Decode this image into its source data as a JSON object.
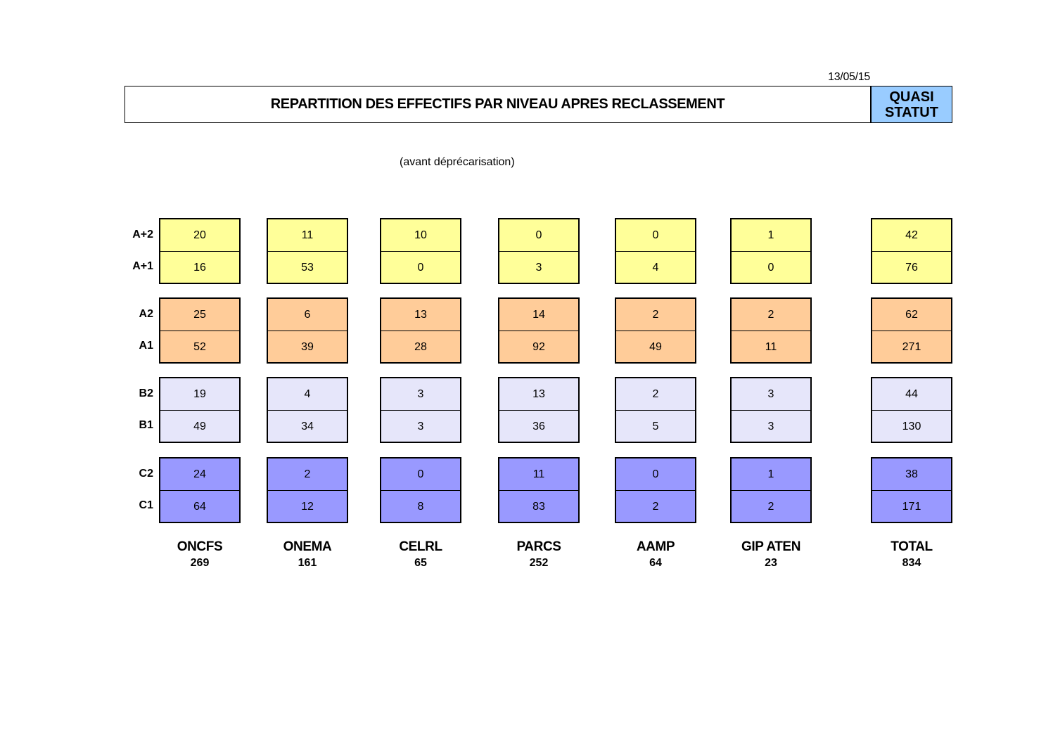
{
  "header": {
    "date": "13/05/15",
    "title": "REPARTITION DES EFFECTIFS PAR NIVEAU APRES RECLASSEMENT",
    "badge_line1": "QUASI",
    "badge_line2": "STATUT",
    "subtitle": "(avant déprécarisation)"
  },
  "colors": {
    "A_plus": "#ffff99",
    "A": "#ffcc99",
    "B": "#e6e6fa",
    "C": "#9999ff",
    "badge": "#99ccff"
  },
  "groups": [
    {
      "key": "A_plus",
      "labels": [
        "A+2",
        "A+1"
      ]
    },
    {
      "key": "A",
      "labels": [
        "A2",
        "A1"
      ]
    },
    {
      "key": "B",
      "labels": [
        "B2",
        "B1"
      ]
    },
    {
      "key": "C",
      "labels": [
        "C2",
        "C1"
      ]
    }
  ],
  "table": {
    "columns": [
      {
        "name": "ONCFS",
        "total": "269",
        "groups": [
          [
            "20",
            "16"
          ],
          [
            "25",
            "52"
          ],
          [
            "19",
            "49"
          ],
          [
            "24",
            "64"
          ]
        ]
      },
      {
        "name": "ONEMA",
        "total": "161",
        "groups": [
          [
            "11",
            "53"
          ],
          [
            "6",
            "39"
          ],
          [
            "4",
            "34"
          ],
          [
            "2",
            "12"
          ]
        ]
      },
      {
        "name": "CELRL",
        "total": "65",
        "groups": [
          [
            "10",
            "0"
          ],
          [
            "13",
            "28"
          ],
          [
            "3",
            "3"
          ],
          [
            "0",
            "8"
          ]
        ]
      },
      {
        "name": "PARCS",
        "total": "252",
        "groups": [
          [
            "0",
            "3"
          ],
          [
            "14",
            "92"
          ],
          [
            "13",
            "36"
          ],
          [
            "11",
            "83"
          ]
        ]
      },
      {
        "name": "AAMP",
        "total": "64",
        "groups": [
          [
            "0",
            "4"
          ],
          [
            "2",
            "49"
          ],
          [
            "2",
            "5"
          ],
          [
            "0",
            "2"
          ]
        ]
      },
      {
        "name": "GIP ATEN",
        "total": "23",
        "groups": [
          [
            "1",
            "0"
          ],
          [
            "2",
            "11"
          ],
          [
            "3",
            "3"
          ],
          [
            "1",
            "2"
          ]
        ]
      },
      {
        "name": "TOTAL",
        "total": "834",
        "groups": [
          [
            "42",
            "76"
          ],
          [
            "62",
            "271"
          ],
          [
            "44",
            "130"
          ],
          [
            "38",
            "171"
          ]
        ]
      }
    ]
  }
}
